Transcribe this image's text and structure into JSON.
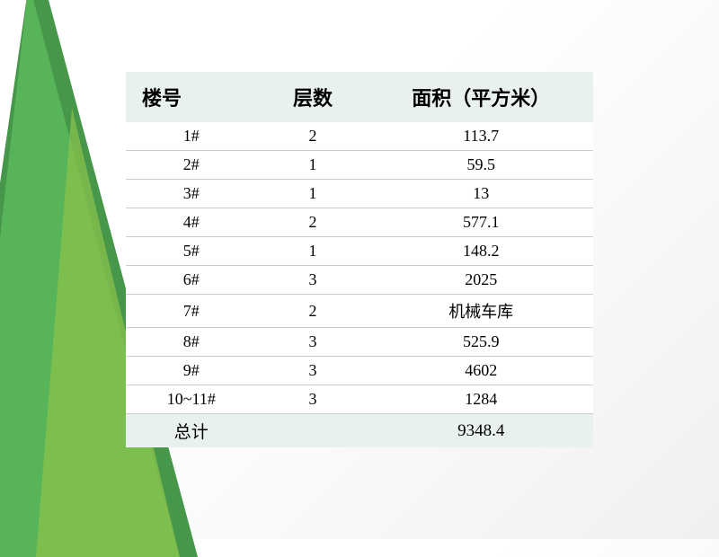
{
  "slide": {
    "background_color": "#ffffff",
    "accent_triangles": [
      {
        "color": "#3d9140",
        "opacity": 0.95
      },
      {
        "color": "#5cb85c",
        "opacity": 0.85
      },
      {
        "color": "#8bc34a",
        "opacity": 0.7
      }
    ]
  },
  "table": {
    "header_bg": "#e8f0f0",
    "row_border_color": "#cccccc",
    "header_fontsize": 22,
    "cell_fontsize": 18,
    "columns": [
      {
        "key": "building",
        "label": "楼号",
        "width_pct": 28,
        "align": "left"
      },
      {
        "key": "floors",
        "label": "层数",
        "width_pct": 24,
        "align": "center"
      },
      {
        "key": "area",
        "label": "面积（平方米）",
        "width_pct": 48,
        "align": "center"
      }
    ],
    "rows": [
      {
        "building": "1#",
        "floors": "2",
        "area": "113.7"
      },
      {
        "building": "2#",
        "floors": "1",
        "area": "59.5"
      },
      {
        "building": "3#",
        "floors": "1",
        "area": "13"
      },
      {
        "building": "4#",
        "floors": "2",
        "area": "577.1"
      },
      {
        "building": "5#",
        "floors": "1",
        "area": "148.2"
      },
      {
        "building": "6#",
        "floors": "3",
        "area": "2025"
      },
      {
        "building": "7#",
        "floors": "2",
        "area": "机械车库"
      },
      {
        "building": "8#",
        "floors": "3",
        "area": "525.9"
      },
      {
        "building": "9#",
        "floors": "3",
        "area": "4602"
      },
      {
        "building": "10~11#",
        "floors": "3",
        "area": "1284"
      }
    ],
    "total": {
      "label": "总计",
      "floors": "",
      "area": "9348.4"
    }
  }
}
